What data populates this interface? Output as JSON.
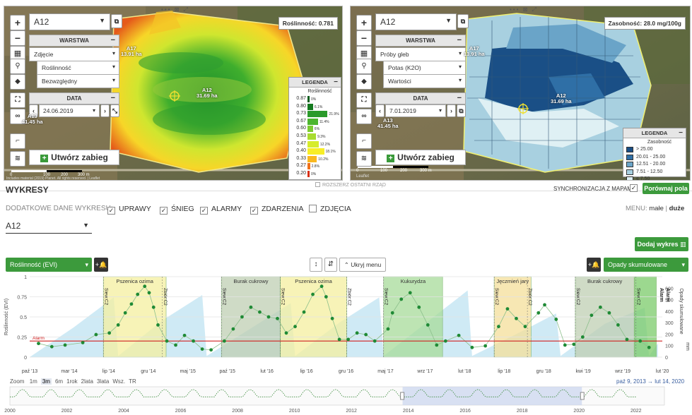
{
  "map_left": {
    "field_select": "A12",
    "layer_header": "WARSTWA",
    "layer_type": "Zdjęcie",
    "layer_index": "Roślinność",
    "layer_mode": "Bezwzględny",
    "date_header": "DATA",
    "date_value": "24.06.2019",
    "create_button": "Utwórz zabieg",
    "value_badge": "Roślinność: 0.781",
    "field_a17": "A17",
    "area_a17": "13.91 ha",
    "field_a12": "A12",
    "area_a12": "31.69 ha",
    "field_a13": "A13",
    "area_a13": "41.45 ha",
    "attribution": "Includes material (2019) Planet. All rights reserved. | Leaflet",
    "scale_labels": [
      "0",
      "100",
      "200",
      "300 m"
    ],
    "legend": {
      "title": "LEGENDA",
      "subtitle": "Roślinność",
      "rows": [
        {
          "v": "0.87",
          "pct": "0%",
          "color": "#0a5d1e",
          "frac": 0.0
        },
        {
          "v": "0.80",
          "pct": "6.1%",
          "color": "#157a20",
          "frac": 0.061
        },
        {
          "v": "0.73",
          "pct": "21.9%",
          "color": "#2a9a2a",
          "frac": 0.219
        },
        {
          "v": "0.67",
          "pct": "11.4%",
          "color": "#4cb52e",
          "frac": 0.114
        },
        {
          "v": "0.60",
          "pct": "6%",
          "color": "#7ccc32",
          "frac": 0.06
        },
        {
          "v": "0.53",
          "pct": "9.3%",
          "color": "#a8dc30",
          "frac": 0.093
        },
        {
          "v": "0.47",
          "pct": "12.2%",
          "color": "#d6ec2c",
          "frac": 0.122
        },
        {
          "v": "0.40",
          "pct": "18.1%",
          "color": "#f7ee28",
          "frac": 0.181
        },
        {
          "v": "0.33",
          "pct": "10.2%",
          "color": "#f9b81f",
          "frac": 0.102
        },
        {
          "v": "0.27",
          "pct": "2.8%",
          "color": "#f0701a",
          "frac": 0.028
        },
        {
          "v": "0.20",
          "pct": "0%",
          "color": "#d93015",
          "frac": 0.0
        }
      ]
    }
  },
  "map_right": {
    "field_select": "A12",
    "layer_header": "WARSTWA",
    "layer_type": "Próby gleb",
    "layer_index": "Potas (K2O)",
    "layer_mode": "Wartości",
    "date_header": "DATA",
    "date_value": "7.01.2019",
    "create_button": "Utwórz zabieg",
    "value_badge": "Zasobność: 28.0 mg/100g",
    "field_a17": "A17",
    "area_a17": "13.91 ha",
    "field_a12": "A12",
    "area_a12": "31.69 ha",
    "field_a13": "A13",
    "area_a13": "41.45 ha",
    "attribution": "Leaflet",
    "scale_labels": [
      "0",
      "100",
      "200",
      "300 m"
    ],
    "legend": {
      "title": "LEGENDA",
      "subtitle": "Zasobność",
      "rows": [
        {
          "label": "> 25.00",
          "color": "#1a4f86"
        },
        {
          "label": "20.01 - 25.00",
          "color": "#2f6fa6"
        },
        {
          "label": "12.51 - 20.00",
          "color": "#6aa4c8"
        },
        {
          "label": "7.51 - 12.50",
          "color": "#a8d0e0"
        },
        {
          "label": "≤ 7.50",
          "color": "#dff0f4"
        }
      ]
    }
  },
  "map_tools": "••• ⊠ ⤢",
  "expand_row": "ROZSZERZ OSTATNI RZĄD",
  "charts": {
    "title": "WYKRESY",
    "sync_label": "SYNCHRONIZACJA Z MAPAMI",
    "compare_button": "Porównaj pola",
    "extra_data_label": "DODATKOWE DANE WYKRESU:",
    "options": [
      {
        "label": "UPRAWY",
        "checked": true
      },
      {
        "label": "ŚNIEG",
        "checked": true
      },
      {
        "label": "ALARMY",
        "checked": true
      },
      {
        "label": "ZDARZENIA",
        "checked": true
      },
      {
        "label": "ZDJĘCIA",
        "checked": false
      }
    ],
    "menu_label": "MENU:",
    "menu_small": "małe",
    "menu_sep": "|",
    "menu_large": "duże",
    "field_select": "A12",
    "add_chart_button": "Dodaj wykres",
    "left_series_select": "Roślinność (EVI)",
    "right_series_select": "Opady skumulowane",
    "hide_menu_button": "Ukryj menu"
  },
  "chart_data": {
    "type": "scatter",
    "x_origin_year": 2013,
    "x_ticks": [
      "paź '13",
      "mar '14",
      "lip '14",
      "gru '14",
      "maj '15",
      "paź '15",
      "lut '16",
      "lip '16",
      "gru '16",
      "maj '17",
      "wrz '17",
      "lut '18",
      "lip '18",
      "gru '18",
      "kwi '19",
      "wrz '19",
      "lut '20"
    ],
    "y_left_label": "Roślinność (EVI)",
    "y_left_ticks": [
      "0",
      "0.25",
      "0.5",
      "0.75",
      "1"
    ],
    "y_left_range": [
      0,
      1
    ],
    "y_right_label": "Opady skumulowane",
    "y_right_unit": "mm",
    "y_right_ticks": [
      "0",
      "100",
      "200",
      "300",
      "400",
      "500",
      "600"
    ],
    "y_right_range": [
      0,
      700
    ],
    "alarm_label": "Alarm",
    "alarm_value": 0.2,
    "right_alarm_labels": [
      "Alarm",
      "Alarm"
    ],
    "crops": [
      {
        "name": "Pszenica ozima",
        "start": 0.833,
        "end": 1.542,
        "color": "#f5f0a0"
      },
      {
        "name": "Burak cukrowy",
        "start": 2.167,
        "end": 2.833,
        "color": "#bfcfb3"
      },
      {
        "name": "Pszenica ozima",
        "start": 2.833,
        "end": 3.583,
        "color": "#f5f0a0"
      },
      {
        "name": "Kukurydza",
        "start": 4.0,
        "end": 4.667,
        "color": "#a8dc9a"
      },
      {
        "name": "Jęczmień jary",
        "start": 5.25,
        "end": 5.667,
        "color": "#f5e09a"
      },
      {
        "name": "Burak cukrowy",
        "start": 6.167,
        "end": 6.833,
        "color": "#bfcfb3"
      },
      {
        "name": "",
        "start": 6.833,
        "end": 7.083,
        "color": "#7ccc6a"
      }
    ],
    "events": [
      {
        "label": "Siew:C2",
        "x": 0.833
      },
      {
        "label": "Zbiór:C2",
        "x": 1.5
      },
      {
        "label": "Siew:C2",
        "x": 2.167
      },
      {
        "label": "Siew:C2",
        "x": 2.833
      },
      {
        "label": "Zbiór:C2",
        "x": 3.583
      },
      {
        "label": "Siew:C2",
        "x": 4.0
      },
      {
        "label": "Siew:C2",
        "x": 5.25
      },
      {
        "label": "Zbiór:C2",
        "x": 5.625
      },
      {
        "label": "Siew:C2",
        "x": 6.167
      },
      {
        "label": "Siew:C2",
        "x": 6.85
      }
    ],
    "series": [
      {
        "name": "Roślinność (EVI)",
        "type": "scatter",
        "color": "#1f8a35",
        "points": [
          [
            0.1,
            0.17
          ],
          [
            0.25,
            0.13
          ],
          [
            0.4,
            0.15
          ],
          [
            0.6,
            0.18
          ],
          [
            0.75,
            0.28
          ],
          [
            0.9,
            0.3
          ],
          [
            1.0,
            0.4
          ],
          [
            1.08,
            0.55
          ],
          [
            1.15,
            0.66
          ],
          [
            1.22,
            0.78
          ],
          [
            1.3,
            0.88
          ],
          [
            1.35,
            0.8
          ],
          [
            1.4,
            0.62
          ],
          [
            1.45,
            0.4
          ],
          [
            1.55,
            0.2
          ],
          [
            1.65,
            0.15
          ],
          [
            1.75,
            0.27
          ],
          [
            1.85,
            0.2
          ],
          [
            1.95,
            0.1
          ],
          [
            2.05,
            0.09
          ],
          [
            2.2,
            0.2
          ],
          [
            2.3,
            0.35
          ],
          [
            2.4,
            0.5
          ],
          [
            2.5,
            0.62
          ],
          [
            2.6,
            0.56
          ],
          [
            2.7,
            0.5
          ],
          [
            2.8,
            0.48
          ],
          [
            2.9,
            0.3
          ],
          [
            3.0,
            0.38
          ],
          [
            3.1,
            0.56
          ],
          [
            3.2,
            0.78
          ],
          [
            3.3,
            0.88
          ],
          [
            3.35,
            0.75
          ],
          [
            3.42,
            0.48
          ],
          [
            3.5,
            0.22
          ],
          [
            3.6,
            0.22
          ],
          [
            3.7,
            0.3
          ],
          [
            3.8,
            0.28
          ],
          [
            3.9,
            0.2
          ],
          [
            4.05,
            0.35
          ],
          [
            4.1,
            0.55
          ],
          [
            4.2,
            0.72
          ],
          [
            4.3,
            0.8
          ],
          [
            4.4,
            0.62
          ],
          [
            4.5,
            0.4
          ],
          [
            4.6,
            0.15
          ],
          [
            4.7,
            0.2
          ],
          [
            4.85,
            0.27
          ],
          [
            5.0,
            0.12
          ],
          [
            5.15,
            0.14
          ],
          [
            5.3,
            0.38
          ],
          [
            5.4,
            0.6
          ],
          [
            5.5,
            0.48
          ],
          [
            5.6,
            0.38
          ],
          [
            5.75,
            0.55
          ],
          [
            5.82,
            0.65
          ],
          [
            5.95,
            0.47
          ],
          [
            6.05,
            0.15
          ],
          [
            6.15,
            0.16
          ],
          [
            6.25,
            0.25
          ],
          [
            6.35,
            0.52
          ],
          [
            6.45,
            0.62
          ],
          [
            6.55,
            0.55
          ],
          [
            6.65,
            0.4
          ],
          [
            6.75,
            0.22
          ],
          [
            6.9,
            0.2
          ],
          [
            7.0,
            0.12
          ]
        ]
      },
      {
        "name": "Opady skumulowane",
        "type": "area",
        "color": "#bfe3f2",
        "points": [
          [
            0.0,
            0
          ],
          [
            0.5,
            260
          ],
          [
            0.95,
            520
          ],
          [
            1.0,
            10
          ],
          [
            1.5,
            320
          ],
          [
            1.95,
            540
          ],
          [
            2.0,
            10
          ],
          [
            2.5,
            250
          ],
          [
            2.95,
            470
          ],
          [
            3.0,
            10
          ],
          [
            3.5,
            300
          ],
          [
            3.95,
            520
          ],
          [
            4.0,
            10
          ],
          [
            4.5,
            310
          ],
          [
            4.95,
            580
          ],
          [
            5.0,
            10
          ],
          [
            5.5,
            200
          ],
          [
            5.95,
            380
          ],
          [
            6.0,
            10
          ],
          [
            6.5,
            290
          ],
          [
            6.95,
            430
          ],
          [
            7.0,
            10
          ],
          [
            7.1,
            120
          ]
        ]
      }
    ],
    "navigator": {
      "zoom_label": "Zoom",
      "zoom_options": [
        "1m",
        "3m",
        "6m",
        "1rok",
        "2lata",
        "3lata",
        "Wsz.",
        "TR"
      ],
      "range_from": "paź 9, 2013",
      "range_arrow": "→",
      "range_to": "lut 14, 2020",
      "years": [
        "2000",
        "2002",
        "2004",
        "2006",
        "2008",
        "2010",
        "2012",
        "2014",
        "2016",
        "2018",
        "2020",
        "2022"
      ]
    }
  }
}
